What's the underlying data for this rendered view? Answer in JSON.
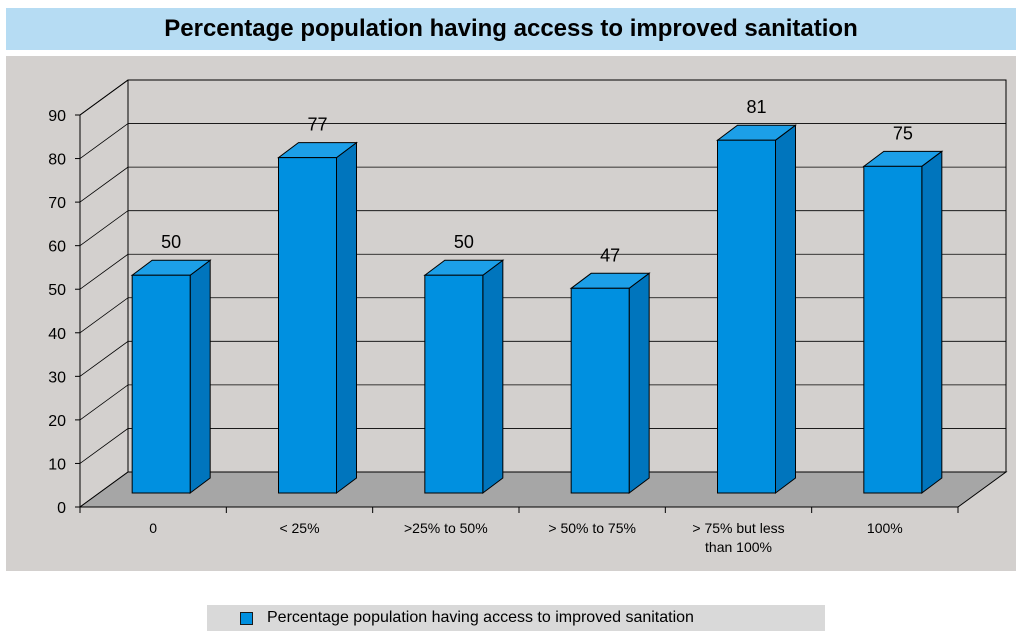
{
  "chart_data": {
    "type": "bar",
    "title": "Percentage population having access to improved sanitation",
    "categories": [
      "0",
      "< 25%",
      ">25% to 50%",
      "> 50% to 75%",
      "> 75% but less than 100%",
      "100%"
    ],
    "category_lines": [
      [
        "0"
      ],
      [
        "< 25%"
      ],
      [
        ">25% to 50%"
      ],
      [
        "> 50% to 75%"
      ],
      [
        "> 75% but less",
        "than 100%"
      ],
      [
        "100%"
      ]
    ],
    "series": [
      {
        "name": "Percentage population having access to improved sanitation",
        "values": [
          50,
          77,
          50,
          47,
          81,
          75
        ]
      }
    ],
    "data_labels": [
      "50",
      "77",
      "50",
      "47",
      "81",
      "75"
    ],
    "y_ticks": [
      "0",
      "10",
      "20",
      "30",
      "40",
      "50",
      "60",
      "70",
      "80",
      "90"
    ],
    "ylim": [
      0,
      90
    ],
    "grid": true,
    "legend_position": "bottom",
    "style": "3d-column"
  },
  "colors": {
    "bar_front": "#0090e0",
    "bar_side": "#0075bd",
    "bar_top": "#1c9fe8",
    "plot_area": "#d3d0ce",
    "floor": "#a6a6a6",
    "title_bg": "#b6dcf3",
    "legend_bg": "#d9d9d9"
  }
}
